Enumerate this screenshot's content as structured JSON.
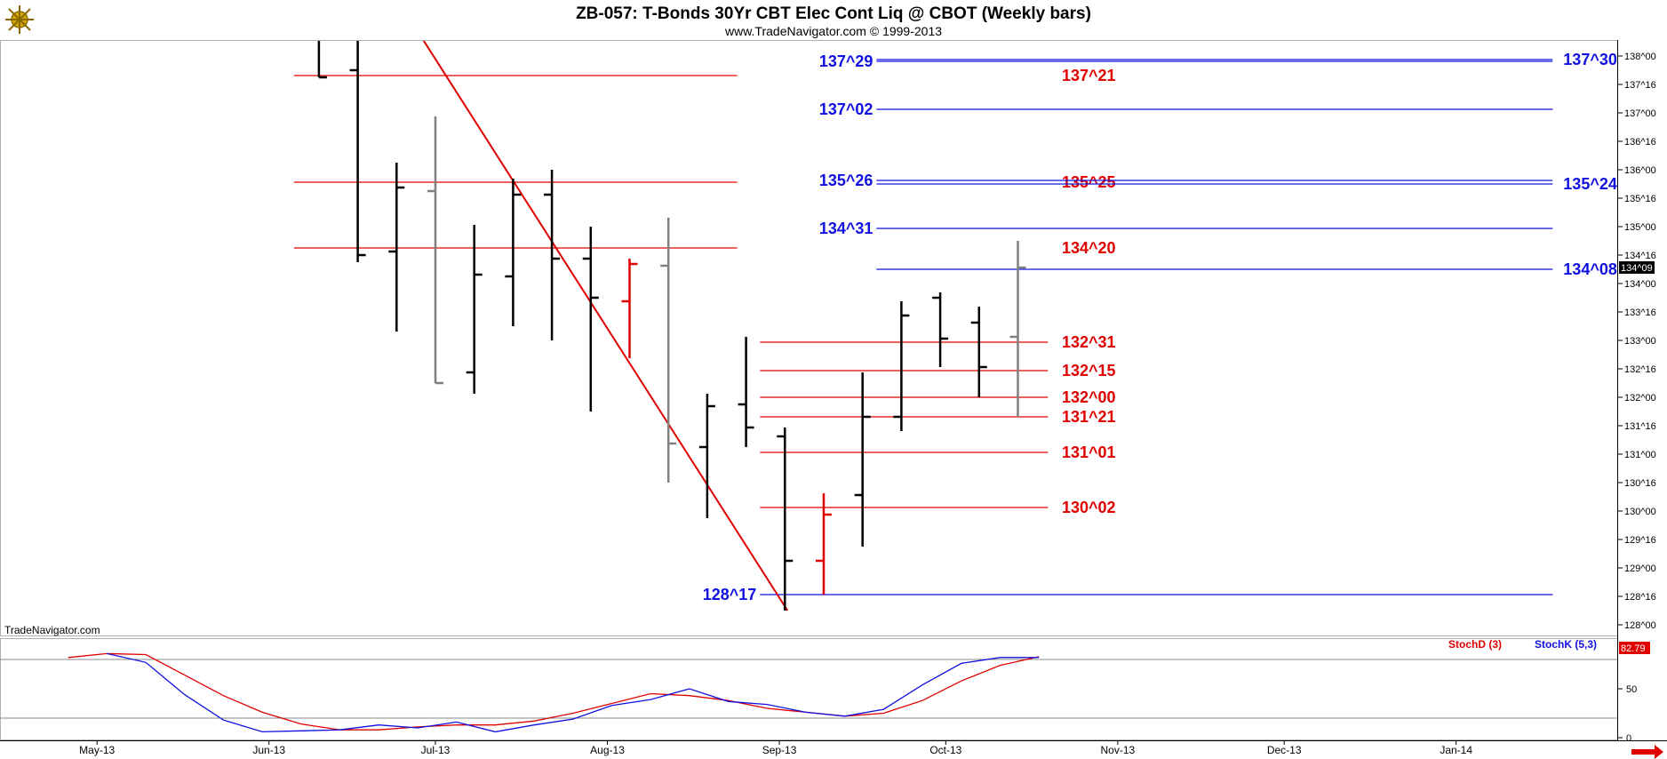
{
  "header": {
    "title": "ZB-057:  T-Bonds 30Yr CBT Elec Cont Liq @ CBOT  (Weekly bars)",
    "subtitle": "www.TradeNavigator.com © 1999-2013",
    "watermark": "TradeNavigator.com"
  },
  "colors": {
    "up_bar": "#000000",
    "down_bar": "#808080",
    "red_bar": "#e00000",
    "red_level": "#e00000",
    "blue_level": "#1010e0",
    "stoch_d": "#e00000",
    "stoch_k": "#1010e0"
  },
  "chart_data": [
    {
      "type": "bar",
      "name": "price",
      "y_unit": "32nds",
      "ylim": [
        "127^24",
        "138^10"
      ],
      "y_ticks": [
        "138^00",
        "137^16",
        "137^00",
        "136^16",
        "136^00",
        "135^16",
        "135^00",
        "134^16",
        "134^00",
        "133^16",
        "133^00",
        "132^16",
        "132^00",
        "131^16",
        "131^00",
        "130^16",
        "130^00",
        "129^16",
        "129^00",
        "128^16",
        "128^00"
      ],
      "last_price": "134^09",
      "x_ticks": [
        "May-13",
        "Jun-13",
        "Jul-13",
        "Aug-13",
        "Sep-13",
        "Oct-13",
        "Nov-13",
        "Dec-13",
        "Jan-14"
      ],
      "bars": [
        {
          "week": "2013-06-10",
          "high": "138^10",
          "low": "137^20",
          "open": "138^10",
          "close": "137^20",
          "color": "up"
        },
        {
          "week": "2013-06-17",
          "high": "138^10",
          "low": "134^12",
          "open": "137^24",
          "close": "134^16",
          "color": "up"
        },
        {
          "week": "2013-06-24",
          "high": "136^04",
          "low": "133^05",
          "open": "134^18",
          "close": "135^22",
          "color": "up"
        },
        {
          "week": "2013-07-01",
          "high": "136^30",
          "low": "132^08",
          "open": "135^20",
          "close": "132^08",
          "color": "down"
        },
        {
          "week": "2013-07-08",
          "high": "135^01",
          "low": "132^02",
          "open": "132^14",
          "close": "134^05",
          "color": "up"
        },
        {
          "week": "2013-07-15",
          "high": "135^27",
          "low": "133^08",
          "open": "134^04",
          "close": "135^18",
          "color": "up"
        },
        {
          "week": "2013-07-22",
          "high": "136^00",
          "low": "133^00",
          "open": "135^18",
          "close": "134^14",
          "color": "up"
        },
        {
          "week": "2013-07-29",
          "high": "135^00",
          "low": "131^24",
          "open": "134^14",
          "close": "133^24",
          "color": "up"
        },
        {
          "week": "2013-08-05",
          "high": "134^14",
          "low": "132^22",
          "open": "133^22",
          "close": "134^11",
          "color": "red"
        },
        {
          "week": "2013-08-12",
          "high": "135^05",
          "low": "130^16",
          "open": "134^10",
          "close": "131^06",
          "color": "down"
        },
        {
          "week": "2013-08-19",
          "high": "132^02",
          "low": "129^28",
          "open": "131^04",
          "close": "131^27",
          "color": "up"
        },
        {
          "week": "2013-08-26",
          "high": "133^02",
          "low": "131^04",
          "open": "131^28",
          "close": "131^15",
          "color": "up"
        },
        {
          "week": "2013-09-02",
          "high": "131^15",
          "low": "128^08",
          "open": "131^10",
          "close": "129^04",
          "color": "up"
        },
        {
          "week": "2013-09-09",
          "high": "130^10",
          "low": "128^17",
          "open": "129^04",
          "close": "129^30",
          "color": "red"
        },
        {
          "week": "2013-09-16",
          "high": "132^14",
          "low": "129^12",
          "open": "130^09",
          "close": "131^21",
          "color": "up"
        },
        {
          "week": "2013-09-23",
          "high": "133^22",
          "low": "131^13",
          "open": "131^21",
          "close": "133^14",
          "color": "up"
        },
        {
          "week": "2013-09-30",
          "high": "133^27",
          "low": "132^17",
          "open": "133^24",
          "close": "133^01",
          "color": "up"
        },
        {
          "week": "2013-10-07",
          "high": "133^19",
          "low": "132^00",
          "open": "133^10",
          "close": "132^17",
          "color": "up"
        },
        {
          "week": "2013-10-14",
          "high": "134^24",
          "low": "131^21",
          "open": "133^02",
          "close": "134^09",
          "color": "down"
        }
      ],
      "levels": [
        {
          "label": "137^21",
          "color": "red",
          "price": "137^21",
          "from_week": "2013-06-10",
          "to_week": "2013-08-26",
          "label_side": "right"
        },
        {
          "label": "135^25",
          "color": "red",
          "price": "135^25",
          "from_week": "2013-06-10",
          "to_week": "2013-08-26",
          "label_side": "right"
        },
        {
          "label": "134^20",
          "color": "red",
          "price": "134^20",
          "from_week": "2013-06-10",
          "to_week": "2013-08-26",
          "label_side": "right"
        },
        {
          "label": "132^31",
          "color": "red",
          "price": "132^31",
          "from_week": "2013-09-02",
          "to_week": "2013-10-21",
          "label_side": "right"
        },
        {
          "label": "132^15",
          "color": "red",
          "price": "132^15",
          "from_week": "2013-09-02",
          "to_week": "2013-10-21",
          "label_side": "right"
        },
        {
          "label": "132^00",
          "color": "red",
          "price": "132^00",
          "from_week": "2013-09-02",
          "to_week": "2013-10-21",
          "label_side": "right"
        },
        {
          "label": "131^21",
          "color": "red",
          "price": "131^21",
          "from_week": "2013-09-02",
          "to_week": "2013-10-21",
          "label_side": "right"
        },
        {
          "label": "131^01",
          "color": "red",
          "price": "131^01",
          "from_week": "2013-09-02",
          "to_week": "2013-10-21",
          "label_side": "right"
        },
        {
          "label": "130^02",
          "color": "red",
          "price": "130^02",
          "from_week": "2013-09-02",
          "to_week": "2013-10-21",
          "label_side": "right"
        },
        {
          "label": "137^29",
          "color": "blue",
          "price": "137^29",
          "from_week": "2013-09-23",
          "to_week": "2014-01-20",
          "label_side": "left"
        },
        {
          "label": "137^30",
          "color": "blue",
          "price": "137^30",
          "from_week": "2013-09-23",
          "to_week": "2014-01-20",
          "label_side": "right"
        },
        {
          "label": "137^02",
          "color": "blue",
          "price": "137^02",
          "from_week": "2013-09-23",
          "to_week": "2014-01-20",
          "label_side": "left"
        },
        {
          "label": "135^26",
          "color": "blue",
          "price": "135^26",
          "from_week": "2013-09-23",
          "to_week": "2014-01-20",
          "label_side": "left"
        },
        {
          "label": "135^24",
          "color": "blue",
          "price": "135^24",
          "from_week": "2013-09-23",
          "to_week": "2014-01-20",
          "label_side": "right"
        },
        {
          "label": "134^31",
          "color": "blue",
          "price": "134^31",
          "from_week": "2013-09-23",
          "to_week": "2014-01-20",
          "label_side": "left"
        },
        {
          "label": "134^08",
          "color": "blue",
          "price": "134^08",
          "from_week": "2013-09-23",
          "to_week": "2014-01-20",
          "label_side": "right"
        },
        {
          "label": "128^17",
          "color": "blue",
          "price": "128^17",
          "from_week": "2013-09-02",
          "to_week": "2014-01-20",
          "label_side": "left"
        }
      ],
      "trendline": {
        "color": "red",
        "from": {
          "week": "2013-07-01",
          "price": "138^10"
        },
        "to": {
          "week": "2013-09-02",
          "price": "128^08"
        }
      }
    },
    {
      "type": "line",
      "name": "stochastic",
      "ylim": [
        0,
        100
      ],
      "y_ticks": [
        0,
        50
      ],
      "ref_lines": [
        20,
        80
      ],
      "last_value": "82.79",
      "legend": [
        {
          "label": "StochD (3)",
          "color": "red"
        },
        {
          "label": "StochK (5,3)",
          "color": "blue"
        }
      ],
      "series": [
        {
          "name": "StochD (3)",
          "color": "red",
          "points": [
            [
              "2013-04-29",
              82
            ],
            [
              "2013-05-06",
              86
            ],
            [
              "2013-05-13",
              85
            ],
            [
              "2013-05-20",
              64
            ],
            [
              "2013-05-27",
              43
            ],
            [
              "2013-06-03",
              26
            ],
            [
              "2013-06-10",
              14
            ],
            [
              "2013-06-17",
              8
            ],
            [
              "2013-06-24",
              8
            ],
            [
              "2013-07-01",
              11
            ],
            [
              "2013-07-08",
              13
            ],
            [
              "2013-07-15",
              13
            ],
            [
              "2013-07-22",
              17
            ],
            [
              "2013-07-29",
              25
            ],
            [
              "2013-08-05",
              35
            ],
            [
              "2013-08-12",
              45
            ],
            [
              "2013-08-19",
              43
            ],
            [
              "2013-08-26",
              38
            ],
            [
              "2013-09-02",
              30
            ],
            [
              "2013-09-09",
              26
            ],
            [
              "2013-09-16",
              22
            ],
            [
              "2013-09-23",
              25
            ],
            [
              "2013-09-30",
              38
            ],
            [
              "2013-10-07",
              58
            ],
            [
              "2013-10-14",
              74
            ],
            [
              "2013-10-21",
              82.79
            ]
          ]
        },
        {
          "name": "StochK (5,3)",
          "color": "blue",
          "points": [
            [
              "2013-05-06",
              86
            ],
            [
              "2013-05-13",
              77
            ],
            [
              "2013-05-20",
              44
            ],
            [
              "2013-05-27",
              18
            ],
            [
              "2013-06-03",
              6
            ],
            [
              "2013-06-10",
              7
            ],
            [
              "2013-06-17",
              8
            ],
            [
              "2013-06-24",
              13
            ],
            [
              "2013-07-01",
              10
            ],
            [
              "2013-07-08",
              16
            ],
            [
              "2013-07-15",
              6
            ],
            [
              "2013-07-22",
              13
            ],
            [
              "2013-07-29",
              19
            ],
            [
              "2013-08-05",
              33
            ],
            [
              "2013-08-12",
              39
            ],
            [
              "2013-08-19",
              50
            ],
            [
              "2013-08-26",
              37
            ],
            [
              "2013-09-02",
              34
            ],
            [
              "2013-09-09",
              26
            ],
            [
              "2013-09-16",
              22
            ],
            [
              "2013-09-23",
              29
            ],
            [
              "2013-09-30",
              54
            ],
            [
              "2013-10-07",
              76
            ],
            [
              "2013-10-14",
              82
            ],
            [
              "2013-10-21",
              82
            ]
          ]
        }
      ]
    }
  ]
}
